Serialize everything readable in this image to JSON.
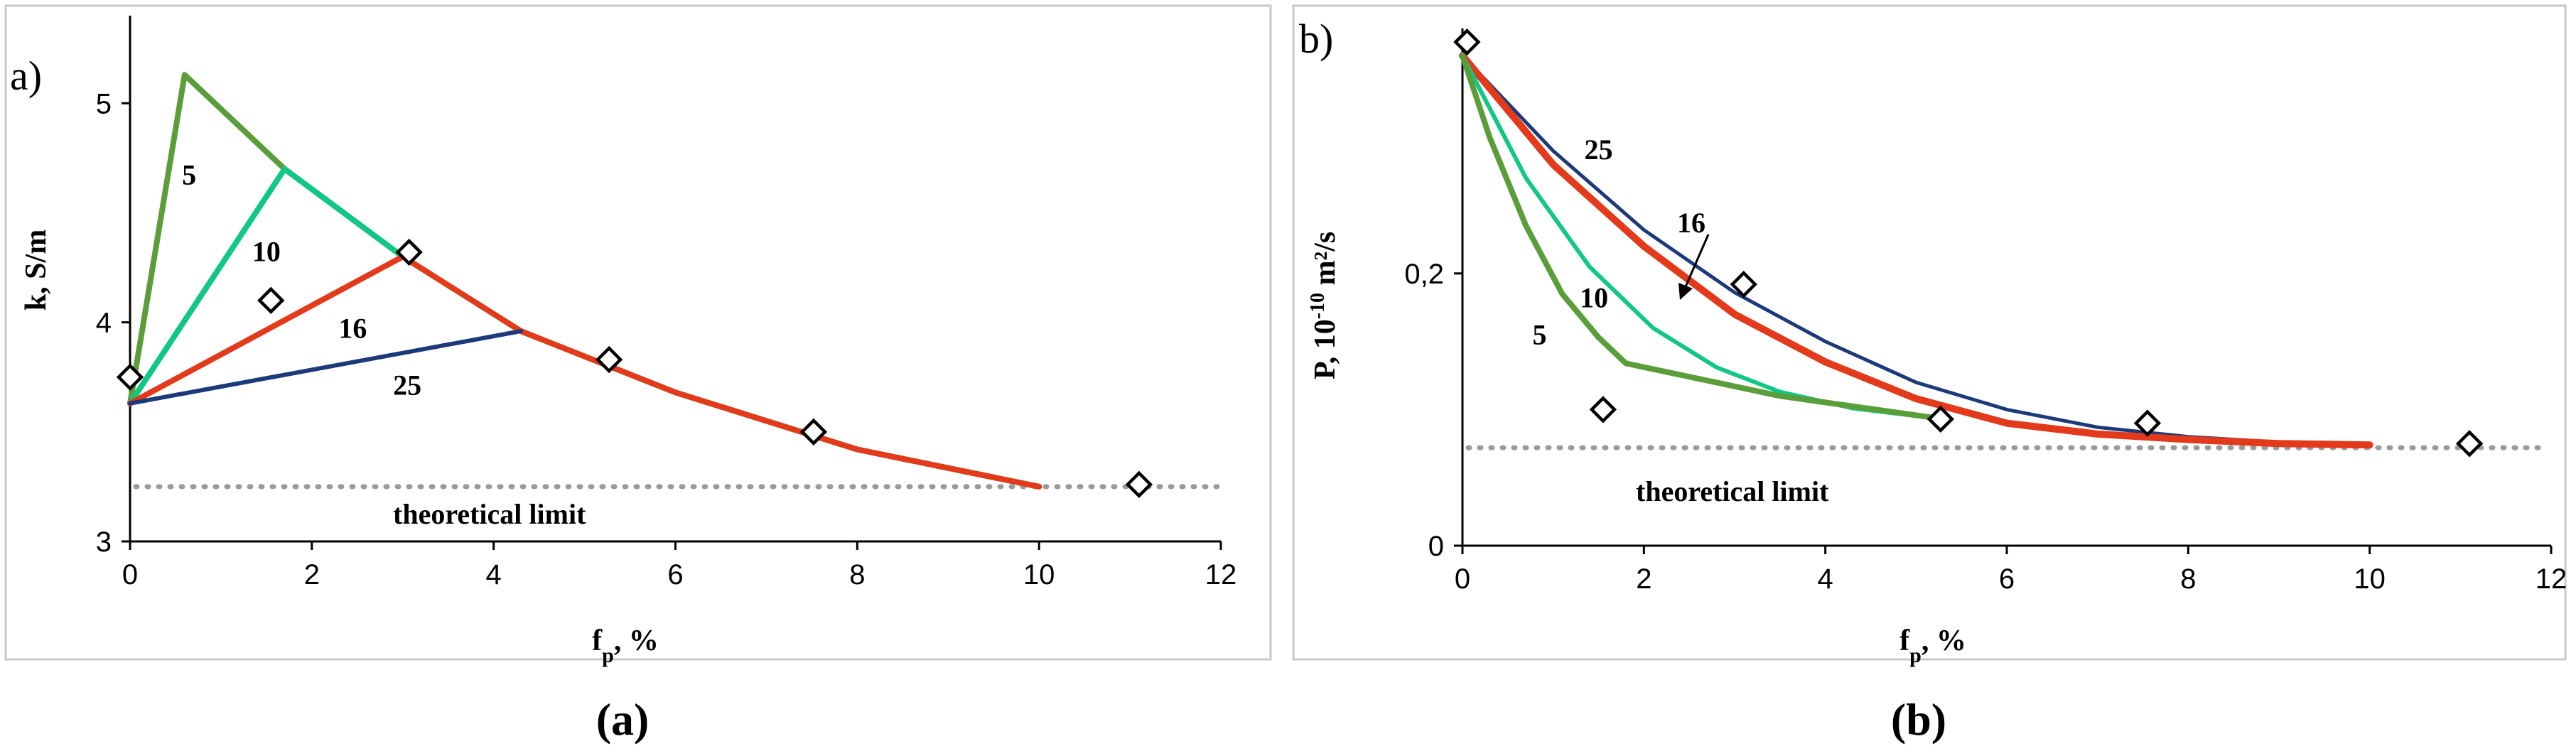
{
  "chart_data": [
    {
      "type": "line",
      "panel_tag": "a)",
      "caption": "(a)",
      "xlabel": "f",
      "xlabel_sub": "p",
      "xlabel_unit": ", %",
      "ylabel": "k, S/m",
      "xlim": [
        0,
        12
      ],
      "ylim": [
        3,
        5.4
      ],
      "x_ticks": [
        0,
        2,
        4,
        6,
        8,
        10,
        12
      ],
      "x_tick_labels": [
        "0",
        "2",
        "4",
        "6",
        "8",
        "10",
        "12"
      ],
      "y_ticks": [
        3,
        4,
        5
      ],
      "y_tick_labels": [
        "3",
        "4",
        "5"
      ],
      "theoretical_limit": {
        "label": "theoretical limit",
        "value": 3.25
      },
      "series": [
        {
          "name": "5",
          "color": "#5a9e3a",
          "width": 8,
          "x": [
            0,
            0.6,
            1.7,
            3.0,
            4.3,
            6.0,
            8.0,
            10.0
          ],
          "y": [
            3.63,
            5.13,
            4.7,
            4.3,
            3.96,
            3.68,
            3.42,
            3.25
          ]
        },
        {
          "name": "10",
          "color": "#10c884",
          "width": 8,
          "x": [
            0,
            1.7,
            3.0,
            4.3,
            6.0,
            8.0,
            10.0
          ],
          "y": [
            3.63,
            4.7,
            4.3,
            3.96,
            3.68,
            3.42,
            3.25
          ]
        },
        {
          "name": "16",
          "color": "#e23a1a",
          "width": 8,
          "x": [
            0,
            3.0,
            4.3,
            6.0,
            8.0,
            10.0
          ],
          "y": [
            3.63,
            4.3,
            3.96,
            3.68,
            3.42,
            3.25
          ]
        },
        {
          "name": "25",
          "color": "#1c3a7a",
          "width": 6,
          "x": [
            0,
            4.3
          ],
          "y": [
            3.63,
            3.96
          ]
        }
      ],
      "curve_label_positions": [
        {
          "name": "5",
          "x": 0.65,
          "y": 4.63
        },
        {
          "name": "10",
          "x": 1.5,
          "y": 4.28
        },
        {
          "name": "16",
          "x": 2.45,
          "y": 3.93
        },
        {
          "name": "25",
          "x": 3.05,
          "y": 3.67
        }
      ],
      "markers": {
        "x": [
          0,
          1.55,
          3.07,
          5.27,
          7.52,
          11.1
        ],
        "y": [
          3.75,
          4.1,
          4.32,
          3.83,
          3.5,
          3.26
        ]
      }
    },
    {
      "type": "line",
      "panel_tag": "b)",
      "caption": "(b)",
      "xlabel": "f",
      "xlabel_sub": "p",
      "xlabel_unit": ", %",
      "ylabel": "P, 10",
      "ylabel_exp": "-10",
      "ylabel_unit": " m²/s",
      "xlim": [
        0,
        12
      ],
      "ylim": [
        0,
        0.38
      ],
      "x_ticks": [
        0,
        2,
        4,
        6,
        8,
        10,
        12
      ],
      "x_tick_labels": [
        "0",
        "2",
        "4",
        "6",
        "8",
        "10",
        "12"
      ],
      "y_ticks": [
        0,
        0.2
      ],
      "y_tick_labels": [
        "0",
        "0,2"
      ],
      "theoretical_limit": {
        "label": "theoretical limit",
        "value": 0.072
      },
      "arrow_annotation": {
        "label": "16"
      },
      "series": [
        {
          "name": "25",
          "color": "#1c3a7a",
          "width": 5,
          "x": [
            0,
            1.0,
            2.0,
            3.0,
            4.0,
            5.0,
            6.0,
            7.0,
            8.0,
            9.0,
            10.0
          ],
          "y": [
            0.36,
            0.29,
            0.232,
            0.186,
            0.15,
            0.12,
            0.1,
            0.087,
            0.08,
            0.076,
            0.074
          ]
        },
        {
          "name": "16",
          "color": "#e23a1a",
          "width": 10,
          "x": [
            0,
            1.0,
            2.0,
            3.0,
            4.0,
            5.0,
            6.0,
            7.0,
            8.0,
            9.0,
            10.0
          ],
          "y": [
            0.36,
            0.28,
            0.22,
            0.17,
            0.135,
            0.108,
            0.09,
            0.082,
            0.078,
            0.075,
            0.074
          ]
        },
        {
          "name": "10",
          "color": "#10c884",
          "width": 6,
          "x": [
            0,
            0.7,
            1.4,
            2.1,
            2.8,
            3.5,
            4.3,
            5.3
          ],
          "y": [
            0.36,
            0.27,
            0.205,
            0.16,
            0.131,
            0.113,
            0.101,
            0.093
          ]
        },
        {
          "name": "5",
          "color": "#5a9e3a",
          "width": 8,
          "x": [
            0,
            0.3,
            0.7,
            1.1,
            1.5,
            1.8,
            3.5,
            5.3
          ],
          "y": [
            0.36,
            0.3,
            0.235,
            0.185,
            0.153,
            0.134,
            0.11,
            0.093
          ]
        }
      ],
      "curve_label_positions": [
        {
          "name": "25",
          "x": 1.5,
          "y": 0.284
        },
        {
          "name": "10",
          "x": 1.45,
          "y": 0.175
        },
        {
          "name": "5",
          "x": 0.85,
          "y": 0.148
        }
      ],
      "markers": {
        "x": [
          0.05,
          1.55,
          3.1,
          5.27,
          7.55,
          11.1
        ],
        "y": [
          0.37,
          0.1,
          0.192,
          0.093,
          0.09,
          0.075
        ]
      }
    }
  ]
}
